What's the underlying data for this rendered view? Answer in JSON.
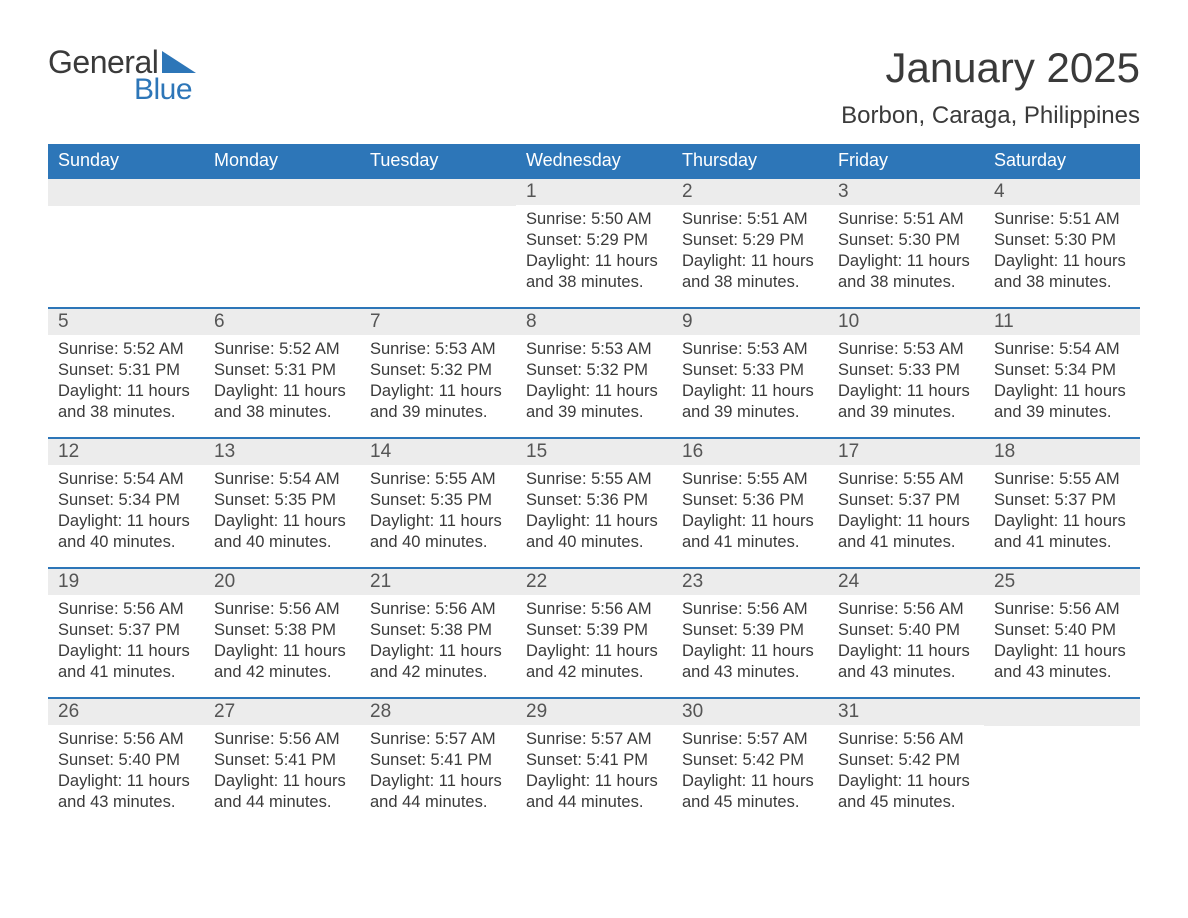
{
  "logo": {
    "word1": "General",
    "word2": "Blue",
    "text_color": "#3a3a3a",
    "blue_color": "#2d76b8"
  },
  "title": "January 2025",
  "location": "Borbon, Caraga, Philippines",
  "colors": {
    "header_bg": "#2d76b8",
    "header_text": "#ffffff",
    "daynum_bg": "#ececec",
    "body_text": "#3a3a3a",
    "page_bg": "#ffffff"
  },
  "day_headers": [
    "Sunday",
    "Monday",
    "Tuesday",
    "Wednesday",
    "Thursday",
    "Friday",
    "Saturday"
  ],
  "weeks": [
    [
      {
        "day": "",
        "sunrise": "",
        "sunset": "",
        "daylight": ""
      },
      {
        "day": "",
        "sunrise": "",
        "sunset": "",
        "daylight": ""
      },
      {
        "day": "",
        "sunrise": "",
        "sunset": "",
        "daylight": ""
      },
      {
        "day": "1",
        "sunrise": "Sunrise: 5:50 AM",
        "sunset": "Sunset: 5:29 PM",
        "daylight": "Daylight: 11 hours and 38 minutes."
      },
      {
        "day": "2",
        "sunrise": "Sunrise: 5:51 AM",
        "sunset": "Sunset: 5:29 PM",
        "daylight": "Daylight: 11 hours and 38 minutes."
      },
      {
        "day": "3",
        "sunrise": "Sunrise: 5:51 AM",
        "sunset": "Sunset: 5:30 PM",
        "daylight": "Daylight: 11 hours and 38 minutes."
      },
      {
        "day": "4",
        "sunrise": "Sunrise: 5:51 AM",
        "sunset": "Sunset: 5:30 PM",
        "daylight": "Daylight: 11 hours and 38 minutes."
      }
    ],
    [
      {
        "day": "5",
        "sunrise": "Sunrise: 5:52 AM",
        "sunset": "Sunset: 5:31 PM",
        "daylight": "Daylight: 11 hours and 38 minutes."
      },
      {
        "day": "6",
        "sunrise": "Sunrise: 5:52 AM",
        "sunset": "Sunset: 5:31 PM",
        "daylight": "Daylight: 11 hours and 38 minutes."
      },
      {
        "day": "7",
        "sunrise": "Sunrise: 5:53 AM",
        "sunset": "Sunset: 5:32 PM",
        "daylight": "Daylight: 11 hours and 39 minutes."
      },
      {
        "day": "8",
        "sunrise": "Sunrise: 5:53 AM",
        "sunset": "Sunset: 5:32 PM",
        "daylight": "Daylight: 11 hours and 39 minutes."
      },
      {
        "day": "9",
        "sunrise": "Sunrise: 5:53 AM",
        "sunset": "Sunset: 5:33 PM",
        "daylight": "Daylight: 11 hours and 39 minutes."
      },
      {
        "day": "10",
        "sunrise": "Sunrise: 5:53 AM",
        "sunset": "Sunset: 5:33 PM",
        "daylight": "Daylight: 11 hours and 39 minutes."
      },
      {
        "day": "11",
        "sunrise": "Sunrise: 5:54 AM",
        "sunset": "Sunset: 5:34 PM",
        "daylight": "Daylight: 11 hours and 39 minutes."
      }
    ],
    [
      {
        "day": "12",
        "sunrise": "Sunrise: 5:54 AM",
        "sunset": "Sunset: 5:34 PM",
        "daylight": "Daylight: 11 hours and 40 minutes."
      },
      {
        "day": "13",
        "sunrise": "Sunrise: 5:54 AM",
        "sunset": "Sunset: 5:35 PM",
        "daylight": "Daylight: 11 hours and 40 minutes."
      },
      {
        "day": "14",
        "sunrise": "Sunrise: 5:55 AM",
        "sunset": "Sunset: 5:35 PM",
        "daylight": "Daylight: 11 hours and 40 minutes."
      },
      {
        "day": "15",
        "sunrise": "Sunrise: 5:55 AM",
        "sunset": "Sunset: 5:36 PM",
        "daylight": "Daylight: 11 hours and 40 minutes."
      },
      {
        "day": "16",
        "sunrise": "Sunrise: 5:55 AM",
        "sunset": "Sunset: 5:36 PM",
        "daylight": "Daylight: 11 hours and 41 minutes."
      },
      {
        "day": "17",
        "sunrise": "Sunrise: 5:55 AM",
        "sunset": "Sunset: 5:37 PM",
        "daylight": "Daylight: 11 hours and 41 minutes."
      },
      {
        "day": "18",
        "sunrise": "Sunrise: 5:55 AM",
        "sunset": "Sunset: 5:37 PM",
        "daylight": "Daylight: 11 hours and 41 minutes."
      }
    ],
    [
      {
        "day": "19",
        "sunrise": "Sunrise: 5:56 AM",
        "sunset": "Sunset: 5:37 PM",
        "daylight": "Daylight: 11 hours and 41 minutes."
      },
      {
        "day": "20",
        "sunrise": "Sunrise: 5:56 AM",
        "sunset": "Sunset: 5:38 PM",
        "daylight": "Daylight: 11 hours and 42 minutes."
      },
      {
        "day": "21",
        "sunrise": "Sunrise: 5:56 AM",
        "sunset": "Sunset: 5:38 PM",
        "daylight": "Daylight: 11 hours and 42 minutes."
      },
      {
        "day": "22",
        "sunrise": "Sunrise: 5:56 AM",
        "sunset": "Sunset: 5:39 PM",
        "daylight": "Daylight: 11 hours and 42 minutes."
      },
      {
        "day": "23",
        "sunrise": "Sunrise: 5:56 AM",
        "sunset": "Sunset: 5:39 PM",
        "daylight": "Daylight: 11 hours and 43 minutes."
      },
      {
        "day": "24",
        "sunrise": "Sunrise: 5:56 AM",
        "sunset": "Sunset: 5:40 PM",
        "daylight": "Daylight: 11 hours and 43 minutes."
      },
      {
        "day": "25",
        "sunrise": "Sunrise: 5:56 AM",
        "sunset": "Sunset: 5:40 PM",
        "daylight": "Daylight: 11 hours and 43 minutes."
      }
    ],
    [
      {
        "day": "26",
        "sunrise": "Sunrise: 5:56 AM",
        "sunset": "Sunset: 5:40 PM",
        "daylight": "Daylight: 11 hours and 43 minutes."
      },
      {
        "day": "27",
        "sunrise": "Sunrise: 5:56 AM",
        "sunset": "Sunset: 5:41 PM",
        "daylight": "Daylight: 11 hours and 44 minutes."
      },
      {
        "day": "28",
        "sunrise": "Sunrise: 5:57 AM",
        "sunset": "Sunset: 5:41 PM",
        "daylight": "Daylight: 11 hours and 44 minutes."
      },
      {
        "day": "29",
        "sunrise": "Sunrise: 5:57 AM",
        "sunset": "Sunset: 5:41 PM",
        "daylight": "Daylight: 11 hours and 44 minutes."
      },
      {
        "day": "30",
        "sunrise": "Sunrise: 5:57 AM",
        "sunset": "Sunset: 5:42 PM",
        "daylight": "Daylight: 11 hours and 45 minutes."
      },
      {
        "day": "31",
        "sunrise": "Sunrise: 5:56 AM",
        "sunset": "Sunset: 5:42 PM",
        "daylight": "Daylight: 11 hours and 45 minutes."
      },
      {
        "day": "",
        "sunrise": "",
        "sunset": "",
        "daylight": ""
      }
    ]
  ]
}
